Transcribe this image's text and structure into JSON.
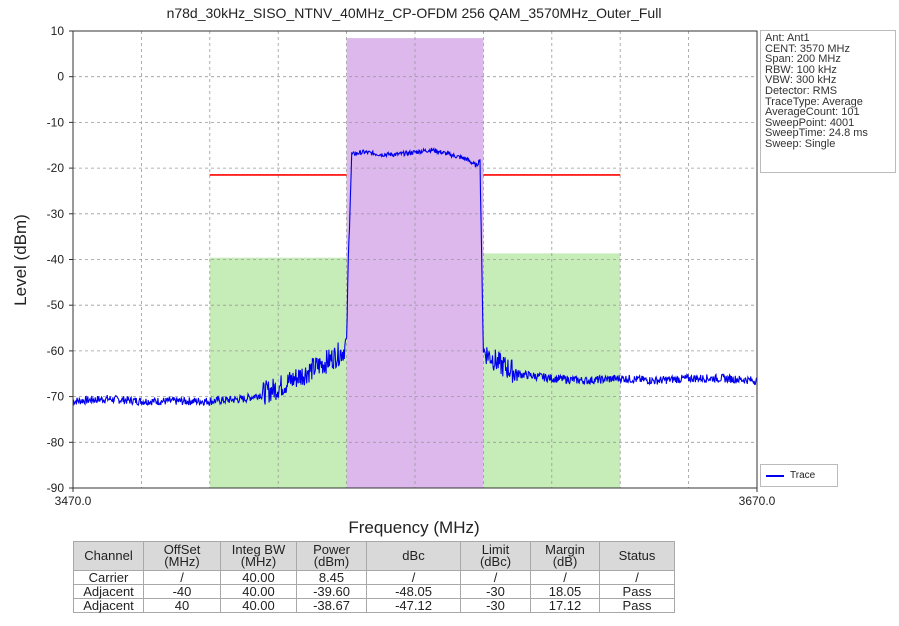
{
  "chart_data": {
    "type": "line",
    "title": "n78d_30kHz_SISO_NTNV_40MHz_CP-OFDM 256 QAM_3570MHz_Outer_Full",
    "xlabel": "Frequency (MHz)",
    "ylabel": "Level (dBm)",
    "xlim": [
      3470,
      3670
    ],
    "ylim": [
      -90,
      10
    ],
    "x_tick_labels": [
      "3470.0",
      "3670.0"
    ],
    "y_ticks": [
      10,
      0,
      -10,
      -20,
      -30,
      -40,
      -50,
      -60,
      -70,
      -80,
      -90
    ],
    "grid": true,
    "legend_position": "bottom-right",
    "series": [
      {
        "name": "Trace",
        "color": "#0000ee",
        "x": [
          3470,
          3480,
          3490,
          3500,
          3510,
          3520,
          3525,
          3530,
          3535,
          3540,
          3545,
          3549,
          3550,
          3550.5,
          3551.5,
          3555,
          3560,
          3565,
          3570,
          3575,
          3580,
          3585,
          3588,
          3589,
          3589.5,
          3590,
          3595,
          3600,
          3610,
          3620,
          3630,
          3640,
          3650,
          3660,
          3670
        ],
        "y": [
          -71,
          -70.5,
          -71,
          -71,
          -71,
          -70.5,
          -69.5,
          -68,
          -66,
          -64,
          -62,
          -60,
          -58,
          -40,
          -17,
          -16.5,
          -17,
          -17,
          -16.5,
          -16,
          -17,
          -18,
          -19.5,
          -18,
          -40,
          -60,
          -63,
          -65,
          -66,
          -66.5,
          -66,
          -66.5,
          -66,
          -66,
          -66.5
        ]
      }
    ],
    "shaded_regions": [
      {
        "channel": "Carrier",
        "x": [
          3550,
          3590
        ],
        "top": 8.45,
        "color": "#ddb8ec"
      },
      {
        "channel": "Adjacent",
        "x": [
          3510,
          3550
        ],
        "top": -39.6,
        "color": "#c6edb8"
      },
      {
        "channel": "Adjacent",
        "x": [
          3590,
          3630
        ],
        "top": -38.67,
        "color": "#c6edb8"
      }
    ],
    "limit_line": {
      "color": "#ff0000",
      "y": -21.5,
      "segments": [
        [
          3510,
          3550
        ],
        [
          3590,
          3630
        ]
      ]
    },
    "instrument_settings": [
      "Ant: Ant1",
      "CENT: 3570 MHz",
      "Span: 200 MHz",
      "RBW: 100 kHz",
      "VBW: 300 kHz",
      "Detector: RMS",
      "TraceType: Average",
      "AverageCount: 101",
      "SweepPoint: 4001",
      "SweepTime: 24.8 ms",
      "Sweep: Single"
    ]
  },
  "table": {
    "headers": [
      "Channel",
      "OffSet\n(MHz)",
      "Integ BW\n(MHz)",
      "Power\n(dBm)",
      "dBc",
      "Limit\n(dBc)",
      "Margin\n(dB)",
      "Status"
    ],
    "rows": [
      [
        "Carrier",
        "/",
        "40.00",
        "8.45",
        "/",
        "/",
        "/",
        "/"
      ],
      [
        "Adjacent",
        "-40",
        "40.00",
        "-39.60",
        "-48.05",
        "-30",
        "18.05",
        "Pass"
      ],
      [
        "Adjacent",
        "40",
        "40.00",
        "-38.67",
        "-47.12",
        "-30",
        "17.12",
        "Pass"
      ]
    ]
  }
}
